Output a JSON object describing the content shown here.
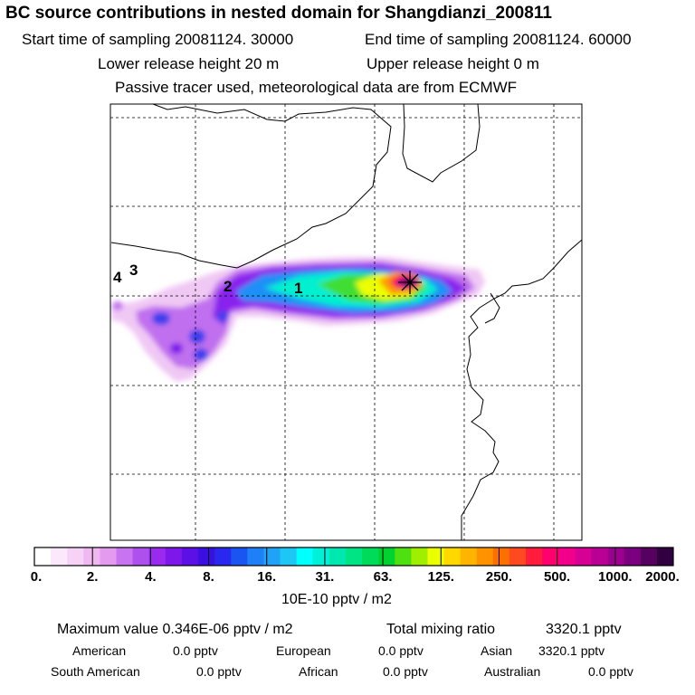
{
  "title": "BC  source contributions in nested domain for Shangdianzi_200811",
  "header": {
    "start_label": "Start time of sampling 20081124. 30000",
    "end_label": "End time of sampling 20081124. 60000",
    "lower_label": "Lower release height   20 m",
    "upper_label": "Upper release height    0 m",
    "tracer_label": "Passive tracer used, meteorological data are from ECMWF"
  },
  "map": {
    "markers": [
      "1",
      "2",
      "3",
      "4"
    ],
    "receptor": "receptor-star"
  },
  "colorbar": {
    "ticks": [
      "0.",
      "2.",
      "4.",
      "8.",
      "16.",
      "31.",
      "63.",
      "125.",
      "250.",
      "500.",
      "1000.",
      "2000."
    ],
    "colors": [
      "#ffffff",
      "#fbe8fb",
      "#f6d3f6",
      "#f0b8f0",
      "#e49aee",
      "#c873ef",
      "#ad50ee",
      "#9a2aef",
      "#7d17ea",
      "#5d10e6",
      "#3a10e2",
      "#2a28ee",
      "#1a55f2",
      "#1f7ff6",
      "#1ea3f6",
      "#1dc6f4",
      "#00ffff",
      "#00f0d8",
      "#00e8b0",
      "#00e486",
      "#00dc5a",
      "#00d230",
      "#4ee010",
      "#a0ee00",
      "#ecff00",
      "#ffd800",
      "#ffb400",
      "#ff9200",
      "#ff6e00",
      "#ff4a20",
      "#ff1c3c",
      "#ff006e",
      "#f2008c",
      "#d60094",
      "#ba0094",
      "#9c0090",
      "#7a0080",
      "#560060",
      "#300040"
    ],
    "units": "10E-10 pptv / m2"
  },
  "stats": {
    "max_label": "Maximum value  0.346E-06 pptv / m2",
    "total_label": "Total mixing ratio",
    "total_value": "3320.1 pptv"
  },
  "regions": [
    {
      "name": "American",
      "value": "0.0 pptv"
    },
    {
      "name": "European",
      "value": "0.0 pptv"
    },
    {
      "name": "Asian",
      "value": "3320.1 pptv"
    },
    {
      "name": "South American",
      "value": "0.0 pptv"
    },
    {
      "name": "African",
      "value": "0.0 pptv"
    },
    {
      "name": "Australian",
      "value": "0.0 pptv"
    }
  ]
}
